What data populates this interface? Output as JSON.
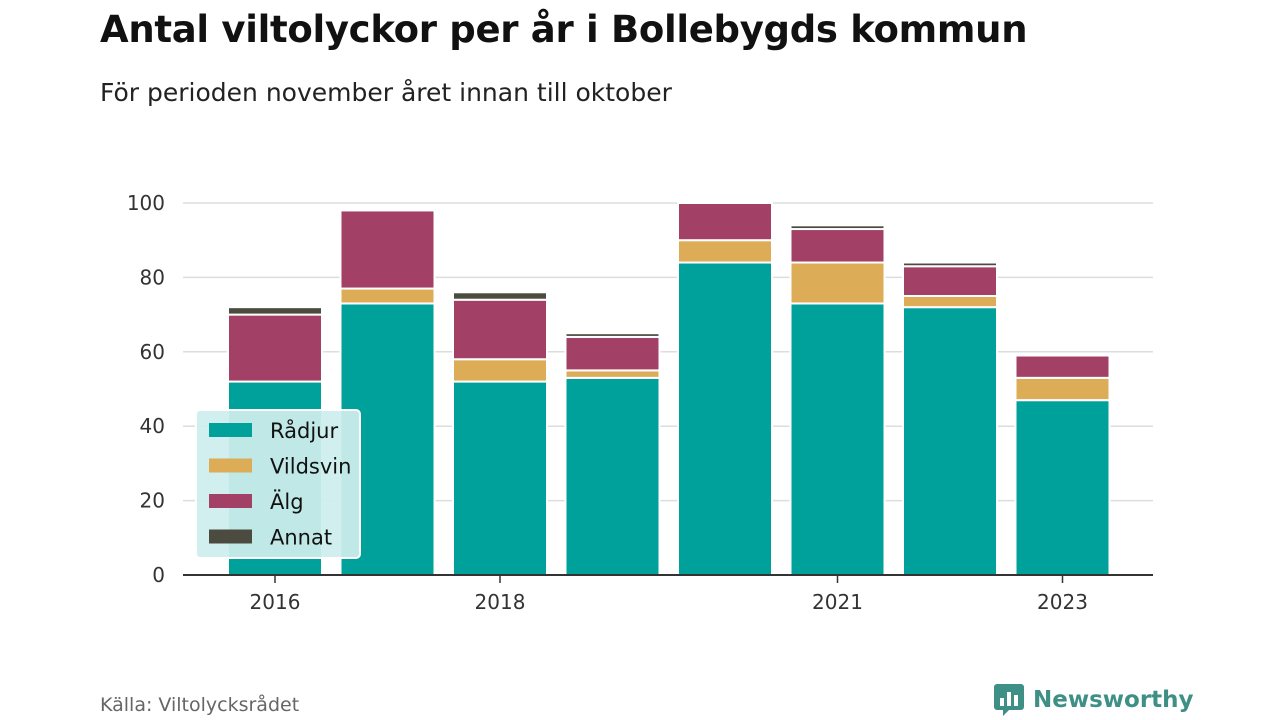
{
  "header": {
    "title": "Antal viltolyckor per år i Bollebygds kommun",
    "subtitle": "För perioden november året innan till oktober"
  },
  "footer": {
    "source": "Källa: Viltolycksrådet",
    "brand": "Newsworthy",
    "brand_icon": "bar-chart-speech-bubble-icon"
  },
  "colors": {
    "radjur": "#00a19a",
    "vildsvin": "#dcac57",
    "alg": "#a24065",
    "annat": "#4c4b40",
    "grid": "#dddddd",
    "axis": "#333333",
    "legend_bg": "#cdeeed",
    "brand": "#3e8f86"
  },
  "chart_data": {
    "type": "bar",
    "stacked": true,
    "x": [
      2016,
      2017,
      2018,
      2019,
      2020,
      2021,
      2022,
      2023
    ],
    "tick_labels": [
      "2016",
      "2018",
      "2021",
      "2023"
    ],
    "tick_values": [
      2016,
      2018,
      2021,
      2023
    ],
    "y_ticks": [
      "0",
      "20",
      "40",
      "60",
      "80",
      "100"
    ],
    "y_tick_values": [
      0,
      20,
      40,
      60,
      80,
      100
    ],
    "ylim": [
      0,
      100
    ],
    "grid": true,
    "legend_position": "bottom-left",
    "series": [
      {
        "name": "Rådjur",
        "color_key": "radjur",
        "values": [
          52,
          73,
          52,
          53,
          84,
          73,
          72,
          47
        ]
      },
      {
        "name": "Vildsvin",
        "color_key": "vildsvin",
        "values": [
          0,
          4,
          6,
          2,
          6,
          11,
          3,
          6
        ]
      },
      {
        "name": "Älg",
        "color_key": "alg",
        "values": [
          18,
          21,
          16,
          9,
          10,
          9,
          8,
          6
        ]
      },
      {
        "name": "Annat",
        "color_key": "annat",
        "values": [
          2,
          0,
          2,
          1,
          0,
          1,
          1,
          0
        ]
      }
    ]
  }
}
